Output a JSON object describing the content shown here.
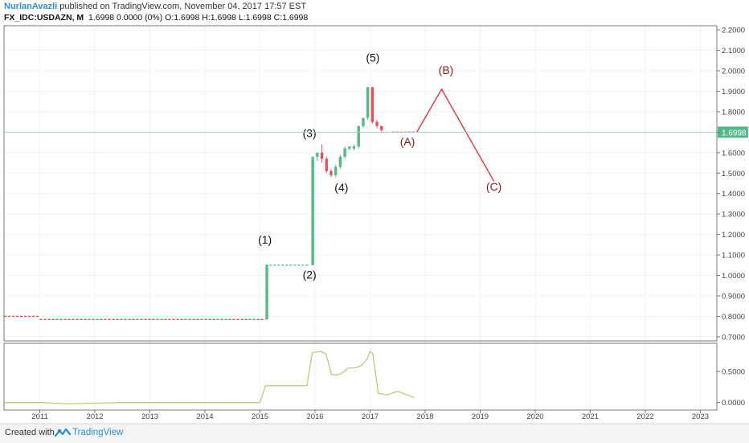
{
  "header": {
    "author": "NurlanAvazli",
    "published_text": "published on TradingView.com, November 04, 2017 17:57 EST",
    "symbol": "FX_IDC:USDAZN, M",
    "ohlc_text": "1.6998 0.0000 (0%) O:1.6998 H:1.6998 L:1.6998 C:1.6998"
  },
  "footer": {
    "created_with": "Created with",
    "brand": "TradingView"
  },
  "colors": {
    "up": "#53b987",
    "down": "#eb4d5c",
    "projection": "#e0343c",
    "wave_label": "#8b1a1a",
    "oscillator": "#c2c87a",
    "last_price_bg": "#53b987",
    "grid": "#f0f3f8",
    "axis_text": "#444444"
  },
  "chart_data": [
    {
      "type": "candlestick",
      "timeframe": "monthly",
      "y_axis_side": "right",
      "ylim": [
        0.68,
        2.22
      ],
      "xlim": [
        2010.35,
        2023.3
      ],
      "y_ticks": [
        "0.7000",
        "0.8000",
        "0.9000",
        "1.0000",
        "1.1000",
        "1.2000",
        "1.3000",
        "1.4000",
        "1.5000",
        "1.6000",
        "1.7000",
        "1.8000",
        "1.9000",
        "2.0000",
        "2.1000",
        "2.2000"
      ],
      "x_ticks": [
        "2011",
        "2012",
        "2013",
        "2014",
        "2015",
        "2016",
        "2017",
        "2018",
        "2019",
        "2020",
        "2021",
        "2022",
        "2023"
      ],
      "last_price": "1.6998",
      "flat_segments": [
        {
          "x_start": 2010.35,
          "x_end": 2011.0,
          "value": 0.8
        },
        {
          "x_start": 2011.0,
          "x_end": 2015.1,
          "value": 0.785
        },
        {
          "x_start": 2015.1,
          "x_end": 2015.9,
          "value": 1.05
        },
        {
          "x_start": 2017.4,
          "x_end": 2017.85,
          "value": 1.7
        }
      ],
      "candles": [
        {
          "date": "2015-02",
          "open": 0.785,
          "high": 1.05,
          "low": 0.785,
          "close": 1.05
        },
        {
          "date": "2015-12",
          "open": 1.05,
          "high": 1.58,
          "low": 1.05,
          "close": 1.58
        },
        {
          "date": "2016-01",
          "open": 1.58,
          "high": 1.6,
          "low": 1.56,
          "close": 1.6
        },
        {
          "date": "2016-02",
          "open": 1.6,
          "high": 1.64,
          "low": 1.55,
          "close": 1.57
        },
        {
          "date": "2016-03",
          "open": 1.57,
          "high": 1.58,
          "low": 1.5,
          "close": 1.51
        },
        {
          "date": "2016-04",
          "open": 1.51,
          "high": 1.52,
          "low": 1.48,
          "close": 1.49
        },
        {
          "date": "2016-05",
          "open": 1.49,
          "high": 1.54,
          "low": 1.48,
          "close": 1.53
        },
        {
          "date": "2016-06",
          "open": 1.53,
          "high": 1.59,
          "low": 1.52,
          "close": 1.58
        },
        {
          "date": "2016-07",
          "open": 1.58,
          "high": 1.63,
          "low": 1.57,
          "close": 1.62
        },
        {
          "date": "2016-08",
          "open": 1.62,
          "high": 1.63,
          "low": 1.61,
          "close": 1.63
        },
        {
          "date": "2016-09",
          "open": 1.62,
          "high": 1.64,
          "low": 1.61,
          "close": 1.63
        },
        {
          "date": "2016-10",
          "open": 1.63,
          "high": 1.73,
          "low": 1.62,
          "close": 1.73
        },
        {
          "date": "2016-11",
          "open": 1.73,
          "high": 1.77,
          "low": 1.72,
          "close": 1.77
        },
        {
          "date": "2016-12",
          "open": 1.77,
          "high": 1.92,
          "low": 1.76,
          "close": 1.92
        },
        {
          "date": "2017-01",
          "open": 1.92,
          "high": 1.92,
          "low": 1.74,
          "close": 1.75
        },
        {
          "date": "2017-02",
          "open": 1.75,
          "high": 1.76,
          "low": 1.72,
          "close": 1.73
        },
        {
          "date": "2017-03",
          "open": 1.73,
          "high": 1.73,
          "low": 1.7,
          "close": 1.71
        }
      ],
      "projection": [
        {
          "x": 2017.85,
          "y": 1.7
        },
        {
          "x": 2018.3,
          "y": 1.91
        },
        {
          "x": 2019.25,
          "y": 1.46
        }
      ],
      "wave_labels": [
        {
          "text": "(1)",
          "x": 2015.09,
          "y": 1.155,
          "style": "impulse"
        },
        {
          "text": "(2)",
          "x": 2015.9,
          "y": 0.985,
          "style": "impulse"
        },
        {
          "text": "(3)",
          "x": 2015.9,
          "y": 1.675,
          "style": "impulse"
        },
        {
          "text": "(4)",
          "x": 2016.48,
          "y": 1.41,
          "style": "impulse"
        },
        {
          "text": "(5)",
          "x": 2017.05,
          "y": 2.045,
          "style": "impulse"
        },
        {
          "text": "(A)",
          "x": 2017.68,
          "y": 1.635,
          "style": "corrective"
        },
        {
          "text": "(B)",
          "x": 2018.38,
          "y": 1.985,
          "style": "corrective"
        },
        {
          "text": "(C)",
          "x": 2019.25,
          "y": 1.415,
          "style": "corrective"
        }
      ]
    },
    {
      "type": "line",
      "panel": "oscillator",
      "y_axis_side": "right",
      "ylim": [
        -0.12,
        0.95
      ],
      "y_ticks": [
        "0.0000",
        "0.5000"
      ],
      "x": [
        2010.35,
        2011.0,
        2011.5,
        2012.5,
        2013.5,
        2014.5,
        2015.0,
        2015.1,
        2015.85,
        2015.95,
        2016.1,
        2016.2,
        2016.3,
        2016.4,
        2016.5,
        2016.6,
        2016.75,
        2016.85,
        2016.95,
        2017.0,
        2017.05,
        2017.15,
        2017.3,
        2017.5,
        2017.65,
        2017.8
      ],
      "values": [
        0.0,
        0.0,
        -0.02,
        0.0,
        0.0,
        0.0,
        0.0,
        0.27,
        0.27,
        0.8,
        0.82,
        0.78,
        0.45,
        0.44,
        0.48,
        0.55,
        0.56,
        0.6,
        0.7,
        0.82,
        0.78,
        0.15,
        0.12,
        0.18,
        0.13,
        0.08
      ]
    }
  ]
}
